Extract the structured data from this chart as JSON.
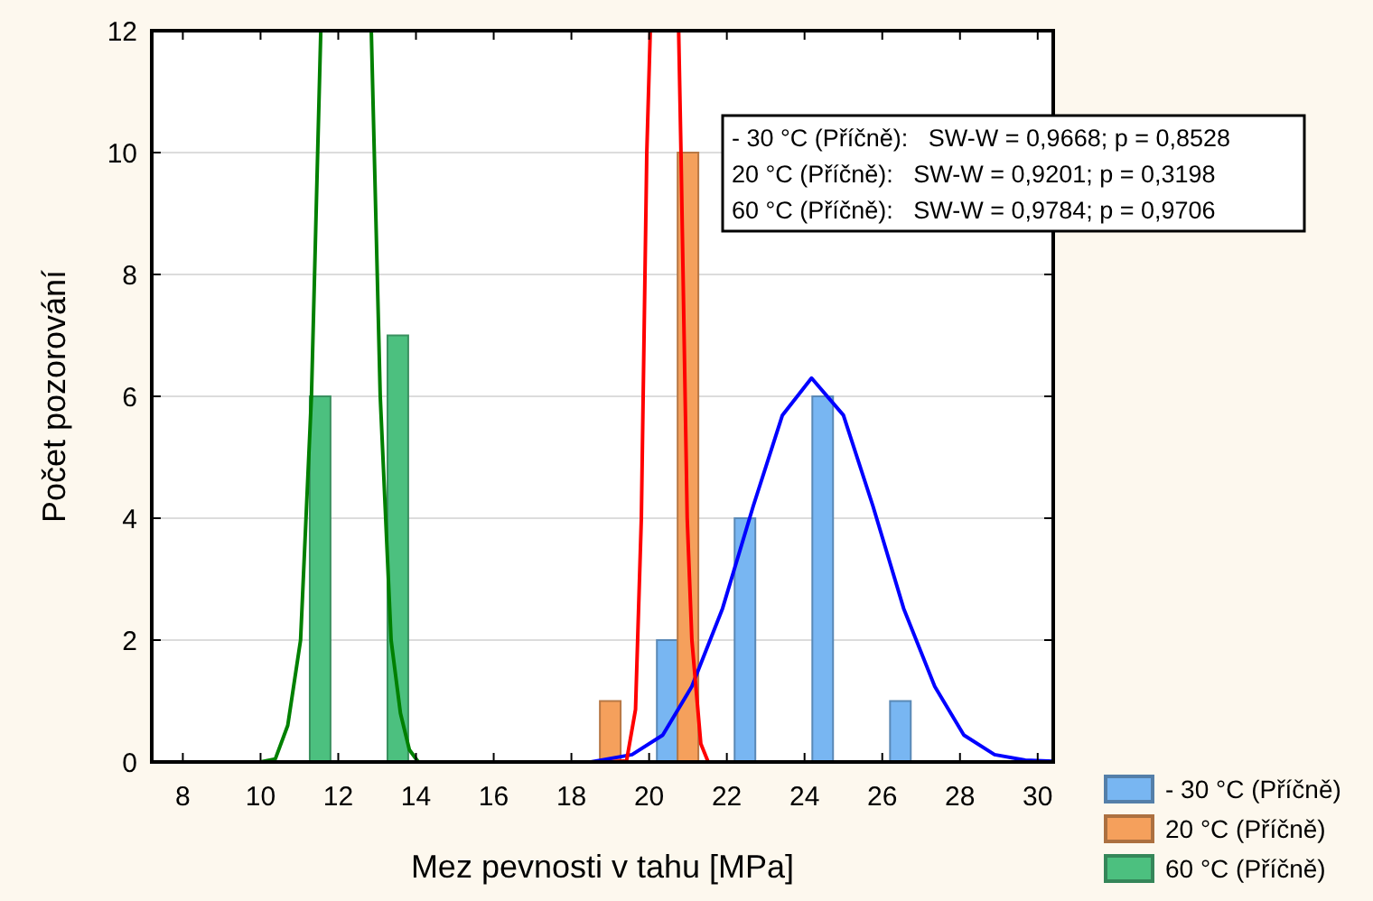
{
  "chart_data": {
    "type": "histogram",
    "xlabel": "Mez pevnosti v tahu [MPa]",
    "ylabel": "Počet pozorování",
    "bins": [
      8,
      10,
      12,
      14,
      16,
      18,
      20,
      22,
      24,
      26,
      28,
      30
    ],
    "series": [
      {
        "name": "- 30 °C (Příčně)",
        "color": "#78b6f2",
        "values": [
          0,
          0,
          0,
          0,
          0,
          0,
          2,
          4,
          6,
          1,
          0
        ]
      },
      {
        "name": "20 °C (Příčně)",
        "color": "#f5a05c",
        "values": [
          0,
          0,
          0,
          0,
          0,
          1,
          10,
          0,
          0,
          0,
          0
        ]
      },
      {
        "name": "60 °C (Příčně)",
        "color": "#4cc07f",
        "values": [
          0,
          6,
          7,
          0,
          0,
          0,
          0,
          0,
          0,
          0,
          0
        ]
      },
      {
        "type": "line",
        "color": "#0000ff",
        "x": [
          18.5,
          18.77,
          19.56,
          20.35,
          21.1,
          21.89,
          22.68,
          23.43,
          24.18,
          25.0,
          25.76,
          26.55,
          27.35,
          28.1,
          28.89,
          29.68,
          30.4
        ],
        "values": [
          0,
          0.03,
          0.12,
          0.44,
          1.24,
          2.52,
          4.2,
          5.69,
          6.3,
          5.69,
          4.2,
          2.52,
          1.24,
          0.44,
          0.12,
          0.03,
          0.01
        ]
      },
      {
        "type": "line",
        "color": "#ff0000",
        "x": [
          19.0,
          19.42,
          19.65,
          19.8,
          19.94,
          20.03
        ],
        "values": [
          0,
          0.02,
          0.86,
          4,
          10,
          12
        ]
      },
      {
        "type": "line",
        "color": "#008000",
        "x": [
          10.0,
          10.38,
          10.7,
          11.03,
          11.31,
          11.55
        ],
        "values": [
          0,
          0.05,
          0.6,
          2,
          6,
          12
        ]
      },
      {
        "type": "line",
        "color": "#ff0000",
        "x": [
          20.76,
          20.82,
          20.98,
          21.1,
          21.33,
          21.52
        ],
        "values": [
          12,
          10,
          4,
          2,
          0.3,
          0
        ]
      },
      {
        "type": "line",
        "color": "#008000",
        "x": [
          12.85,
          13.08,
          13.36,
          13.6,
          13.83,
          14.06
        ],
        "values": [
          12,
          6,
          2,
          0.8,
          0.2,
          0
        ]
      }
    ],
    "xlim": [
      7.2,
      30.4
    ],
    "xticks": [
      8,
      10,
      12,
      14,
      16,
      18,
      20,
      22,
      24,
      26,
      28,
      30
    ],
    "ylim": [
      0,
      12
    ],
    "yticks": [
      0,
      2,
      4,
      6,
      8,
      10,
      12
    ],
    "grid": "y",
    "legend": "bottom right",
    "line_style": "solid",
    "marker": "none",
    "annotations": [
      "- 30 °C (Příčně):   SW-W = 0,9668; p = 0,8528",
      "20 °C (Příčně):   SW-W = 0,9201; p = 0,3198",
      "60 °C (Příčně):   SW-W = 0,9784; p = 0,9706"
    ]
  }
}
